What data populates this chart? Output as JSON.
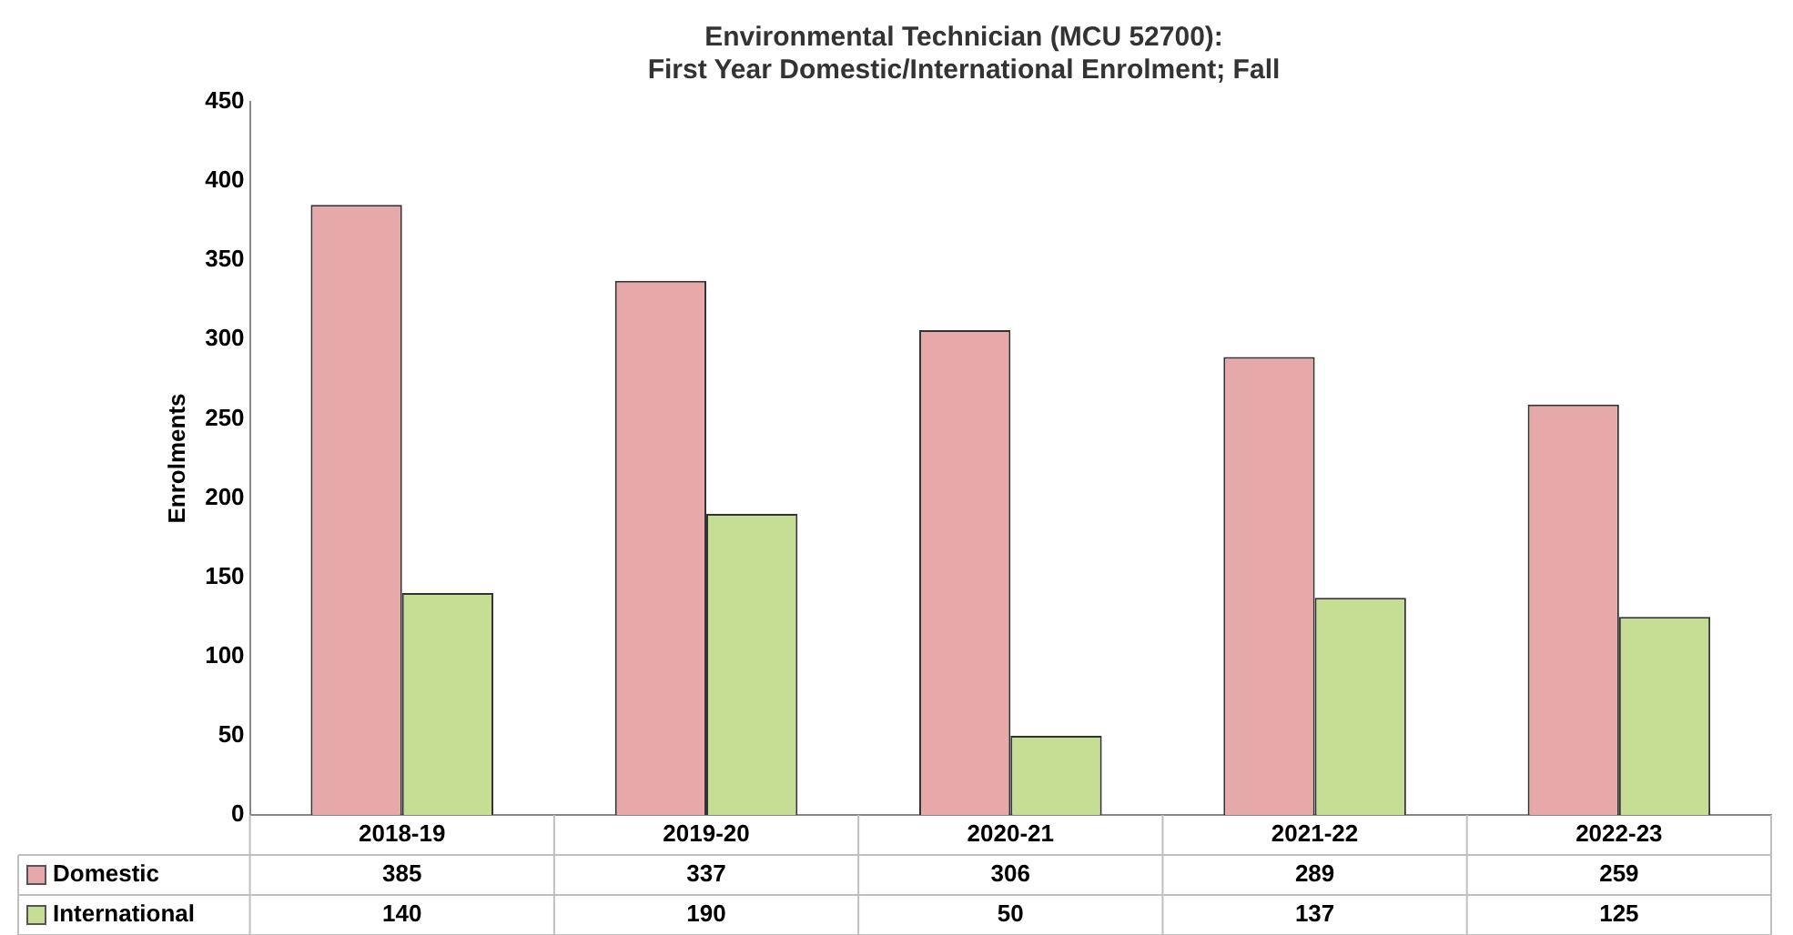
{
  "chart_data": {
    "type": "bar",
    "title": "Environmental Technician (MCU 52700):",
    "subtitle": "First Year Domestic/International Enrolment; Fall",
    "ylabel": "Enrolments",
    "categories": [
      "2018-19",
      "2019-20",
      "2020-21",
      "2021-22",
      "2022-23"
    ],
    "series": [
      {
        "name": "Domestic",
        "color": "#e6a8a8",
        "values": [
          385,
          337,
          306,
          289,
          259
        ]
      },
      {
        "name": "International",
        "color": "#c6dd94",
        "values": [
          140,
          190,
          50,
          137,
          125
        ]
      }
    ],
    "ylim": [
      0,
      450
    ],
    "yticks": [
      0,
      50,
      100,
      150,
      200,
      250,
      300,
      350,
      400,
      450
    ],
    "grid": false,
    "legend": "bottom",
    "data_labels": true
  }
}
